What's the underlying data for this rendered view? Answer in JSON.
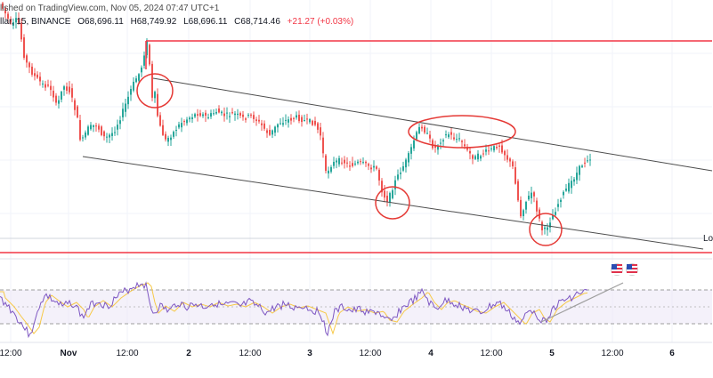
{
  "header": {
    "published_line": "lished on TradingView.com, Nov 05, 2024 07:47 UTC+1",
    "symbol_prefix": "llar, 15, BINANCE",
    "open": "O68,696.11",
    "high": "H68,749.92",
    "low": "L68,696.11",
    "close": "C68,714.46",
    "change": "+21.27 (+0.03%)"
  },
  "right_edge_label": "Lo",
  "time_axis": {
    "labels": [
      {
        "text": "12:00",
        "bold": false
      },
      {
        "text": "Nov",
        "bold": true
      },
      {
        "text": "12:00",
        "bold": false
      },
      {
        "text": "2",
        "bold": true
      },
      {
        "text": "12:00",
        "bold": false
      },
      {
        "text": "3",
        "bold": true
      },
      {
        "text": "12:00",
        "bold": false
      },
      {
        "text": "4",
        "bold": true
      },
      {
        "text": "12:00",
        "bold": false
      },
      {
        "text": "5",
        "bold": true
      },
      {
        "text": "12:00",
        "bold": false
      },
      {
        "text": "6",
        "bold": true
      }
    ]
  },
  "colors": {
    "bull": "#26a69a",
    "bear": "#ef5350",
    "level_line": "#f23645",
    "channel": "#4d4d4d",
    "circle": "#e53935",
    "rsi_line": "#7e57c2",
    "rsi_ma": "#f7c948",
    "rsi_band": "#ede7f6",
    "rsi_band_border": "#9e9e9e",
    "grid": "#f0f3fa",
    "trendline": "#9e9e9e"
  },
  "chart_data": {
    "type": "candlestick",
    "symbol": "BINANCE 15m",
    "title": "",
    "xlabel": "",
    "ylabel": "",
    "subchart": "rsi",
    "annotations": [
      "horizontal resistance line",
      "horizontal support line",
      "descending channel",
      "ellipse highlights at touches of channel",
      "rising trendline on RSI"
    ]
  }
}
